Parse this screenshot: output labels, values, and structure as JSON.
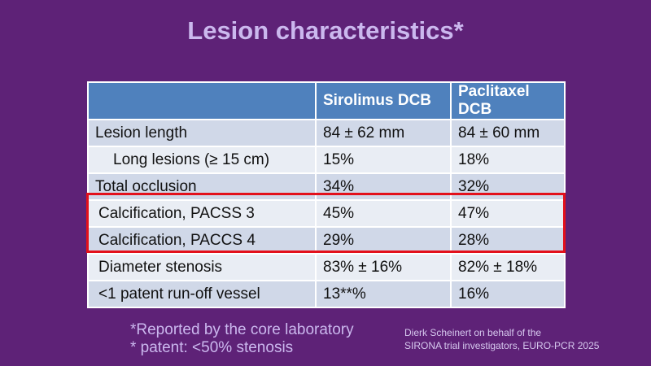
{
  "title": "Lesion characteristics*",
  "table": {
    "headers": [
      "",
      "Sirolimus DCB",
      "Paclitaxel DCB"
    ],
    "rows": [
      {
        "label": "Lesion length",
        "sirolimus": "84  ± 62 mm",
        "paclitaxel": "84 ± 60 mm"
      },
      {
        "label": "Long lesions (≥ 15 cm)",
        "sirolimus": "15%",
        "paclitaxel": "18%"
      },
      {
        "label": "Total occlusion",
        "sirolimus": "34%",
        "paclitaxel": "32%"
      },
      {
        "label": "Calcification, PACSS 3",
        "sirolimus": "45%",
        "paclitaxel": "47%"
      },
      {
        "label": "Calcification, PACCS 4",
        "sirolimus": "29%",
        "paclitaxel": "28%"
      },
      {
        "label": "Diameter stenosis",
        "sirolimus": "83% ± 16%",
        "paclitaxel": "82% ± 18%"
      },
      {
        "label": "<1 patent run-off vessel",
        "sirolimus": "13**%",
        "paclitaxel": "16%"
      }
    ]
  },
  "footnotes": [
    "*Reported by the core laboratory",
    "* patent: <50% stenosis"
  ],
  "credit": [
    "Dierk Scheinert on behalf of the",
    "SIRONA trial investigators, EURO-PCR  2025"
  ],
  "colors": {
    "background": "#5e2277",
    "header": "#4f81bd",
    "highlight": "#e3101b"
  }
}
